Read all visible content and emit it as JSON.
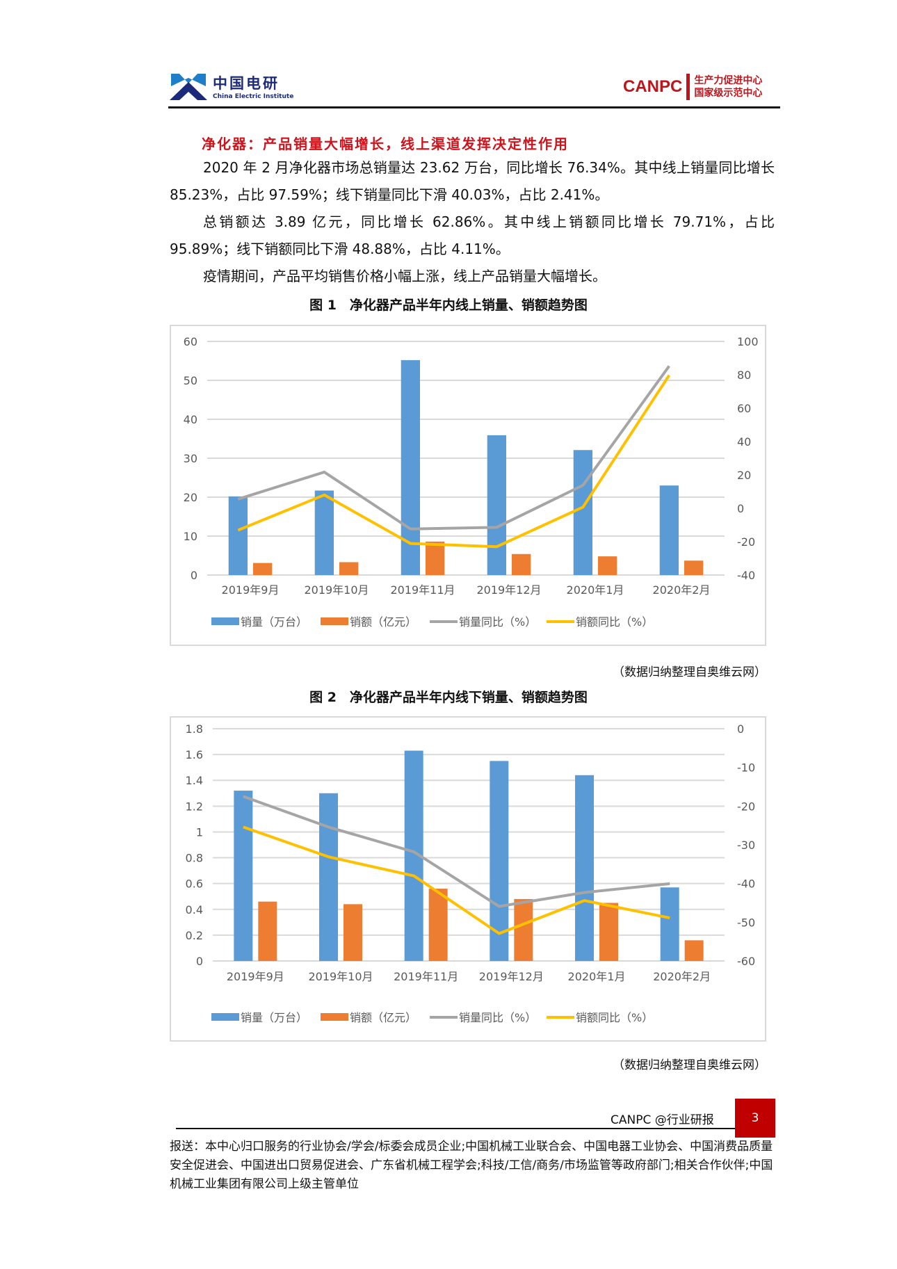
{
  "header": {
    "left_logo": {
      "cn": "中国电研",
      "en": "China Electric Institute"
    },
    "right_logo": {
      "brand": "CANPC",
      "line1": "生产力促进中心",
      "line2": "国家级示范中心"
    }
  },
  "headline": "净化器：产品销量大幅增长，线上渠道发挥决定性作用",
  "paragraphs": [
    "2020 年 2 月净化器市场总销量达 23.62 万台，同比增长 76.34%。其中线上销量同比增长 85.23%，占比 97.59%；线下销量同比下滑 40.03%，占比 2.41%。",
    "总销额达 3.89 亿元，同比增长 62.86%。其中线上销额同比增长 79.71%，占比 95.89%；线下销额同比下滑 48.88%，占比 4.11%。",
    "疫情期间，产品平均销售价格小幅上涨，线上产品销量大幅增长。"
  ],
  "figure1": {
    "caption": "图 1　净化器产品半年内线上销量、销额趋势图",
    "source": "（数据归纳整理自奥维云网）"
  },
  "figure2": {
    "caption": "图 2　净化器产品半年内线下销量、销额趋势图",
    "source": "（数据归纳整理自奥维云网）"
  },
  "chart_data": [
    {
      "type": "bar+line",
      "title": "图 1　净化器产品半年内线上销量、销额趋势图",
      "categories": [
        "2019年9月",
        "2019年10月",
        "2019年11月",
        "2019年12月",
        "2020年1月",
        "2020年2月"
      ],
      "left_axis": {
        "range": [
          0,
          60
        ],
        "ticks": [
          "0",
          "10",
          "20",
          "30",
          "40",
          "50",
          "60"
        ]
      },
      "right_axis": {
        "range": [
          -40,
          100
        ],
        "ticks": [
          "-40",
          "-20",
          "0",
          "20",
          "40",
          "60",
          "80",
          "100"
        ]
      },
      "grid": true,
      "legend": "bottom",
      "series": [
        {
          "name": "销量（万台）",
          "kind": "bar",
          "axis": "left",
          "color": "#5b9bd5",
          "values": [
            20.2,
            21.7,
            55.2,
            35.9,
            32.1,
            23.0
          ]
        },
        {
          "name": "销额（亿元）",
          "kind": "bar",
          "axis": "left",
          "color": "#ed7d31",
          "values": [
            3.1,
            3.3,
            8.6,
            5.4,
            4.8,
            3.7
          ]
        },
        {
          "name": "销量同比（%）",
          "kind": "line",
          "axis": "right",
          "color": "#a5a5a5",
          "values": [
            5.5,
            21.7,
            -12.4,
            -11.4,
            13.8,
            85.23
          ]
        },
        {
          "name": "销额同比（%）",
          "kind": "line",
          "axis": "right",
          "color": "#ffc000",
          "values": [
            -13.1,
            8.0,
            -21.1,
            -23.0,
            0.7,
            79.71
          ]
        }
      ]
    },
    {
      "type": "bar+line",
      "title": "图 2　净化器产品半年内线下销量、销额趋势图",
      "categories": [
        "2019年9月",
        "2019年10月",
        "2019年11月",
        "2019年12月",
        "2020年1月",
        "2020年2月"
      ],
      "left_axis": {
        "range": [
          0,
          1.8
        ],
        "ticks": [
          "0",
          "0.2",
          "0.4",
          "0.6",
          "0.8",
          "1",
          "1.2",
          "1.4",
          "1.6",
          "1.8"
        ]
      },
      "right_axis": {
        "range": [
          -60,
          0
        ],
        "ticks": [
          "-60",
          "-50",
          "-40",
          "-30",
          "-20",
          "-10",
          "0"
        ]
      },
      "grid": true,
      "legend": "bottom",
      "series": [
        {
          "name": "销量（万台）",
          "kind": "bar",
          "axis": "left",
          "color": "#5b9bd5",
          "values": [
            1.32,
            1.3,
            1.63,
            1.55,
            1.44,
            0.57
          ]
        },
        {
          "name": "销额（亿元）",
          "kind": "bar",
          "axis": "left",
          "color": "#ed7d31",
          "values": [
            0.46,
            0.44,
            0.56,
            0.48,
            0.45,
            0.16
          ]
        },
        {
          "name": "销量同比（%）",
          "kind": "line",
          "axis": "right",
          "color": "#a5a5a5",
          "values": [
            -17.5,
            -25.4,
            -31.8,
            -45.9,
            -42.3,
            -40.03
          ]
        },
        {
          "name": "销额同比（%）",
          "kind": "line",
          "axis": "right",
          "color": "#ffc000",
          "values": [
            -25.4,
            -33.1,
            -38.0,
            -52.9,
            -44.4,
            -48.88
          ]
        }
      ]
    }
  ],
  "footer": {
    "brand": "CANPC @行业研报",
    "page": "3",
    "distribution": "报送：本中心归口服务的行业协会/学会/标委会成员企业;中国机械工业联合会、中国电器工业协会、中国消费品质量安全促进会、中国进出口贸易促进会、广东省机械工程学会;科技/工信/商务/市场监管等政府部门;相关合作伙伴;中国机械工业集团有限公司上级主管单位"
  }
}
